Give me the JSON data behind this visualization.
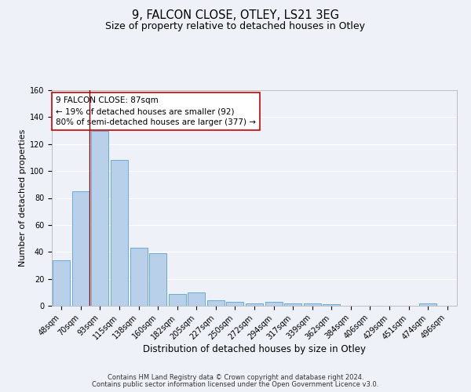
{
  "title": "9, FALCON CLOSE, OTLEY, LS21 3EG",
  "subtitle": "Size of property relative to detached houses in Otley",
  "xlabel": "Distribution of detached houses by size in Otley",
  "ylabel": "Number of detached properties",
  "categories": [
    "48sqm",
    "70sqm",
    "93sqm",
    "115sqm",
    "138sqm",
    "160sqm",
    "182sqm",
    "205sqm",
    "227sqm",
    "250sqm",
    "272sqm",
    "294sqm",
    "317sqm",
    "339sqm",
    "362sqm",
    "384sqm",
    "406sqm",
    "429sqm",
    "451sqm",
    "474sqm",
    "496sqm"
  ],
  "values": [
    34,
    85,
    130,
    108,
    43,
    39,
    9,
    10,
    4,
    3,
    2,
    3,
    2,
    2,
    1,
    0,
    0,
    0,
    0,
    2,
    0
  ],
  "bar_color": "#b8d0ea",
  "bar_edgecolor": "#6aaad4",
  "bar_linewidth": 0.7,
  "vline_color": "#8b0000",
  "vline_x_idx": 1,
  "ylim": [
    0,
    160
  ],
  "yticks": [
    0,
    20,
    40,
    60,
    80,
    100,
    120,
    140,
    160
  ],
  "annotation_line1": "9 FALCON CLOSE: 87sqm",
  "annotation_line2": "← 19% of detached houses are smaller (92)",
  "annotation_line3": "80% of semi-detached houses are larger (377) →",
  "annotation_fontsize": 7.5,
  "bg_color": "#eef2f8",
  "grid_color": "#ffffff",
  "footer_line1": "Contains HM Land Registry data © Crown copyright and database right 2024.",
  "footer_line2": "Contains public sector information licensed under the Open Government Licence v3.0.",
  "title_fontsize": 10.5,
  "subtitle_fontsize": 9,
  "xlabel_fontsize": 8.5,
  "ylabel_fontsize": 8,
  "tick_fontsize": 7,
  "footer_fontsize": 6
}
